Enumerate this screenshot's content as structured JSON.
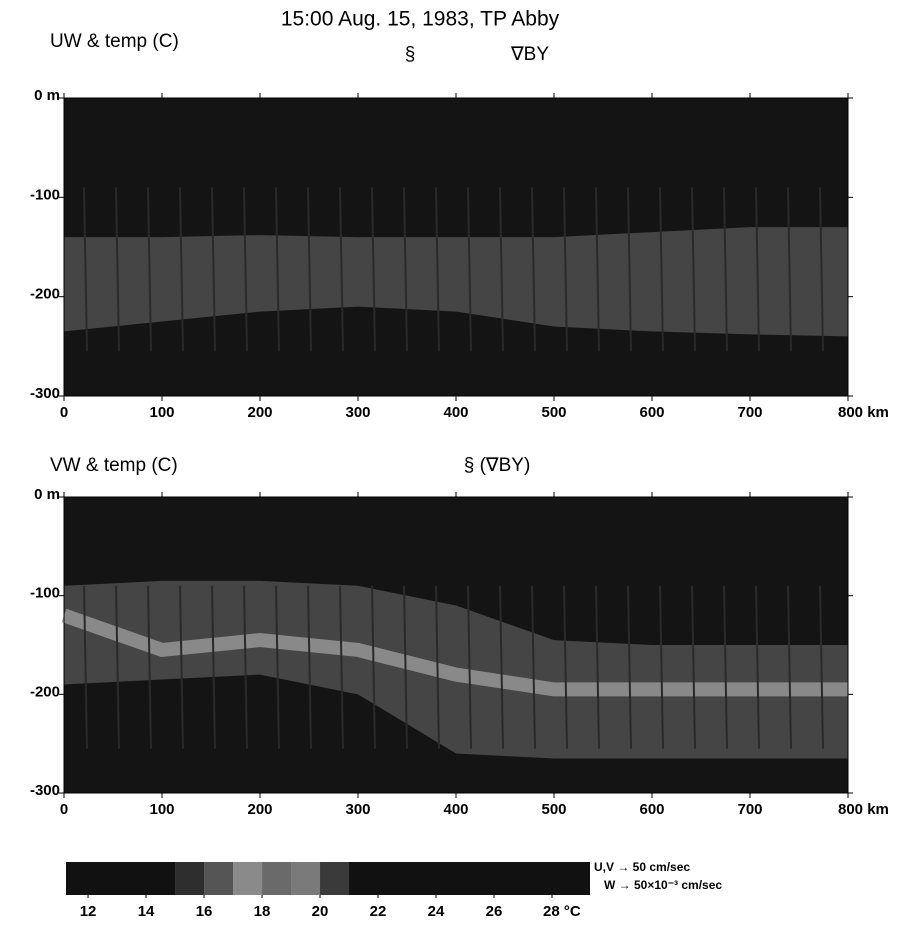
{
  "title": "15:00 Aug. 15, 1983, TP Abby",
  "chart_data": [
    {
      "type": "band",
      "title": "UW & temp (C)",
      "annotations": [
        "§",
        "∇BY"
      ],
      "x": [
        0,
        100,
        200,
        300,
        400,
        500,
        600,
        700,
        800
      ],
      "series": [
        {
          "color": "#4e4e4e",
          "values": [
            -140,
            -140,
            -138,
            -140,
            -140,
            -140,
            -135,
            -130,
            -130
          ]
        },
        {
          "color": "#4e4e4e",
          "values": [
            -235,
            -225,
            -215,
            -210,
            -215,
            -230,
            -235,
            -238,
            -240
          ]
        }
      ],
      "xlim": [
        0,
        800
      ],
      "ylim": [
        -300,
        0
      ],
      "xticks": [
        0,
        100,
        200,
        300,
        400,
        500,
        600,
        700,
        {
          "value": 800,
          "label": "800 km"
        }
      ],
      "yticks": [
        {
          "value": 0,
          "label": "0 m"
        },
        -100,
        -200,
        -300
      ]
    },
    {
      "type": "band",
      "title": "VW & temp (C)",
      "annotations": [
        "§ (∇BY)"
      ],
      "x": [
        0,
        100,
        200,
        300,
        400,
        500,
        600,
        700,
        800
      ],
      "series": [
        {
          "color": "#4e4e4e",
          "values": [
            -90,
            -85,
            -85,
            -90,
            -110,
            -145,
            -150,
            -150,
            -150
          ]
        },
        {
          "color": "#4e4e4e",
          "values": [
            -190,
            -185,
            -180,
            -200,
            -260,
            -265,
            -265,
            -265,
            -265
          ]
        },
        {
          "color": "#9a9a9a",
          "values": [
            -120,
            -155,
            -145,
            -155,
            -180,
            -195,
            -195,
            -195,
            -195
          ]
        }
      ],
      "xlim": [
        0,
        800
      ],
      "ylim": [
        -300,
        0
      ],
      "xticks": [
        0,
        100,
        200,
        300,
        400,
        500,
        600,
        700,
        {
          "value": 800,
          "label": "800 km"
        }
      ],
      "yticks": [
        {
          "value": 0,
          "label": "0 m"
        },
        -100,
        -200,
        -300
      ]
    },
    {
      "type": "colorbar",
      "xlim": [
        11.24,
        29.31
      ],
      "bins": [
        11.24,
        15,
        16,
        17,
        18,
        19,
        20,
        21,
        29.31
      ],
      "colors": [
        "#111111",
        "#2e2e2e",
        "#555555",
        "#8a8a8a",
        "#6a6a6a",
        "#7a7a7a",
        "#3a3a3a",
        "#111111"
      ],
      "xticks": [
        12,
        14,
        16,
        18,
        20,
        22,
        24,
        26,
        {
          "value": 28,
          "label": "28 °C"
        }
      ],
      "annotations": [
        "U,V → 50 cm/sec",
        "W → 50×10⁻³ cm/sec"
      ]
    }
  ]
}
